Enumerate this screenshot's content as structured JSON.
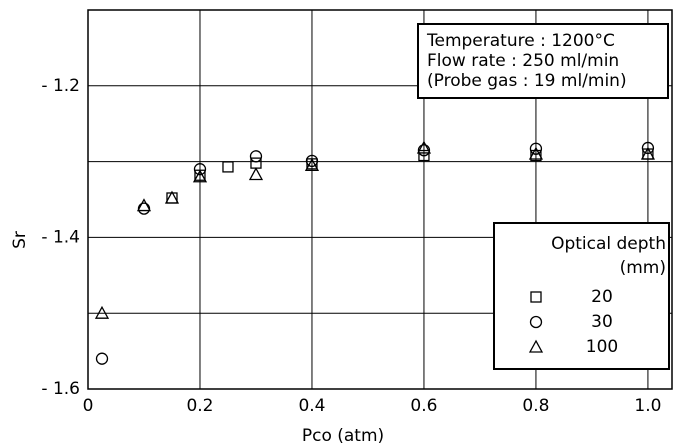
{
  "chart_data": {
    "type": "scatter",
    "xlabel": "Pco (atm)",
    "ylabel": "Sr",
    "xlim": [
      0,
      1.043
    ],
    "xticks": [
      0,
      0.2,
      0.4,
      0.6,
      0.8,
      {
        "value": 1,
        "label": "1.0"
      }
    ],
    "ylim": [
      -1.6,
      -1.1
    ],
    "yticks": [
      {
        "value": -1.6,
        "label": "- 1.6"
      },
      {
        "value": -1.4,
        "label": "- 1.4"
      },
      {
        "value": -1.2,
        "label": "- 1.2"
      }
    ],
    "yminor_grid": [
      -1.5,
      -1.3
    ],
    "grid": true,
    "annotation": [
      "Temperature : 1200°C",
      "Flow rate : 250 ml/min",
      "(Probe gas : 19 ml/min)"
    ],
    "legend_title": [
      "Optical depth",
      "(mm)"
    ],
    "legend_position": "lower right",
    "series": [
      {
        "name": "20",
        "marker": "square",
        "color": "#000000",
        "x": [
          0.15,
          0.2,
          0.25,
          0.3,
          0.4,
          0.6,
          0.8,
          1.0
        ],
        "values": [
          -1.348,
          -1.318,
          -1.307,
          -1.302,
          -1.303,
          -1.292,
          -1.292,
          -1.29
        ]
      },
      {
        "name": "30",
        "marker": "circle",
        "color": "#000000",
        "x": [
          0.025,
          0.1,
          0.2,
          0.3,
          0.4,
          0.6,
          0.8,
          1.0
        ],
        "values": [
          -1.56,
          -1.362,
          -1.31,
          -1.293,
          -1.299,
          -1.285,
          -1.283,
          -1.282
        ]
      },
      {
        "name": "100",
        "marker": "triangle",
        "color": "#000000",
        "x": [
          0.025,
          0.1,
          0.15,
          0.2,
          0.3,
          0.4,
          0.6,
          0.8,
          1.0
        ],
        "values": [
          -1.5,
          -1.358,
          -1.348,
          -1.32,
          -1.317,
          -1.305,
          -1.282,
          -1.29,
          -1.29
        ]
      }
    ]
  }
}
